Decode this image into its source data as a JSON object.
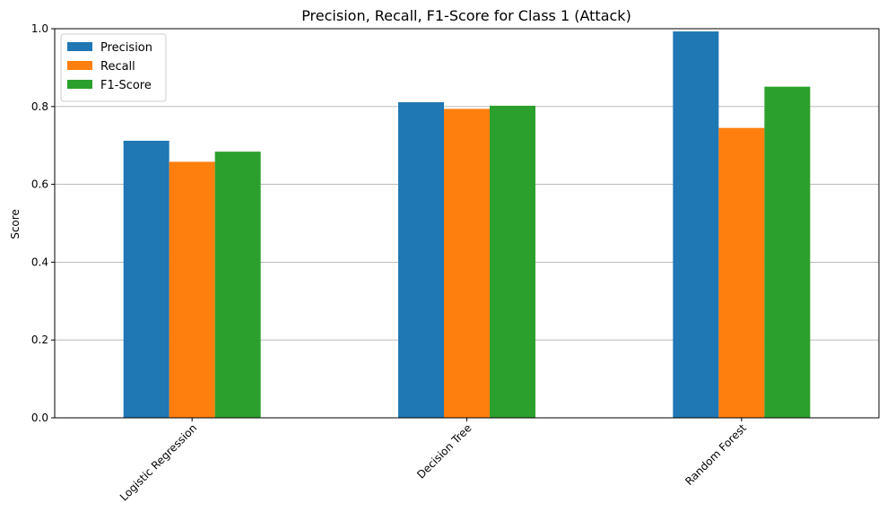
{
  "chart_data": {
    "type": "bar",
    "title": "Precision, Recall, F1-Score for Class 1 (Attack)",
    "xlabel": "",
    "ylabel": "Score",
    "categories": [
      "Logistic Regression",
      "Decision Tree",
      "Random Forest"
    ],
    "series": [
      {
        "name": "Precision",
        "color": "#1f77b4",
        "values": [
          0.712,
          0.811,
          0.993
        ]
      },
      {
        "name": "Recall",
        "color": "#ff7f0e",
        "values": [
          0.658,
          0.794,
          0.745
        ]
      },
      {
        "name": "F1-Score",
        "color": "#2ca02c",
        "values": [
          0.684,
          0.802,
          0.851
        ]
      }
    ],
    "ylim": [
      0,
      1.0
    ],
    "yticks": [
      "0.0",
      "0.2",
      "0.4",
      "0.6",
      "0.8",
      "1.0"
    ],
    "ytick_values": [
      0,
      0.2,
      0.4,
      0.6,
      0.8,
      1.0
    ],
    "grid": "horizontal",
    "grid_color": "#b0b0b0",
    "legend_position": "top-left"
  }
}
